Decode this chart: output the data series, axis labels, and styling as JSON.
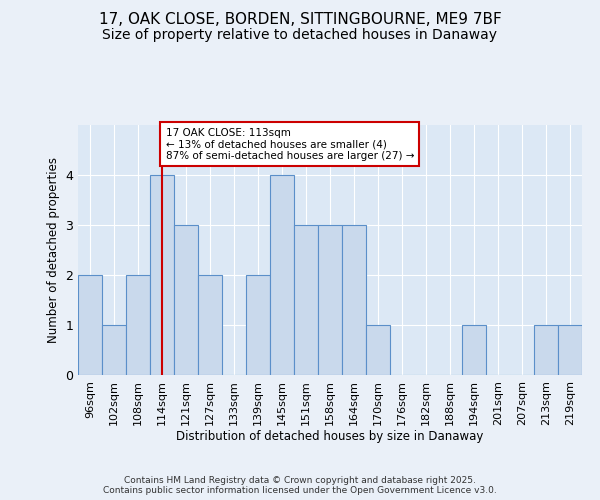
{
  "title_line1": "17, OAK CLOSE, BORDEN, SITTINGBOURNE, ME9 7BF",
  "title_line2": "Size of property relative to detached houses in Danaway",
  "xlabel": "Distribution of detached houses by size in Danaway",
  "ylabel": "Number of detached properties",
  "categories": [
    "96sqm",
    "102sqm",
    "108sqm",
    "114sqm",
    "121sqm",
    "127sqm",
    "133sqm",
    "139sqm",
    "145sqm",
    "151sqm",
    "158sqm",
    "164sqm",
    "170sqm",
    "176sqm",
    "182sqm",
    "188sqm",
    "194sqm",
    "201sqm",
    "207sqm",
    "213sqm",
    "219sqm"
  ],
  "values": [
    2,
    1,
    2,
    4,
    3,
    2,
    0,
    2,
    4,
    3,
    3,
    3,
    1,
    0,
    0,
    0,
    1,
    0,
    0,
    1,
    1
  ],
  "bar_color": "#c9d9ec",
  "bar_edge_color": "#5b8fc9",
  "vline_x": 3,
  "vline_color": "#cc0000",
  "annotation_text": "17 OAK CLOSE: 113sqm\n← 13% of detached houses are smaller (4)\n87% of semi-detached houses are larger (27) →",
  "ylim": [
    0,
    5.0
  ],
  "yticks": [
    0,
    1,
    2,
    3,
    4
  ],
  "footer": "Contains HM Land Registry data © Crown copyright and database right 2025.\nContains public sector information licensed under the Open Government Licence v3.0.",
  "bg_color": "#eaf0f8",
  "plot_bg_color": "#dce8f5",
  "title_fontsize": 11,
  "subtitle_fontsize": 10,
  "label_fontsize": 8.5,
  "tick_fontsize": 8,
  "ann_fontsize": 7.5,
  "footer_fontsize": 6.5
}
